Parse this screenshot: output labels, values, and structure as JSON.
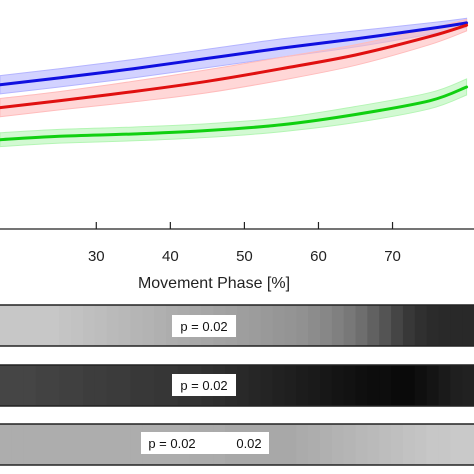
{
  "chart_data": {
    "type": "line",
    "xlabel": "Movement Phase [%]",
    "ylabel": "",
    "title": "",
    "xlim": [
      17,
      81
    ],
    "ylim": [
      0,
      1
    ],
    "grid": false,
    "x_ticks": [
      30,
      40,
      50,
      60,
      70
    ],
    "series": [
      {
        "color": "#1010e0",
        "band_color": "#b4b4ff",
        "x": [
          17,
          25,
          35,
          45,
          55,
          65,
          75,
          80
        ],
        "y": [
          0.63,
          0.66,
          0.7,
          0.745,
          0.79,
          0.83,
          0.875,
          0.9
        ],
        "band": [
          0.04,
          0.04,
          0.04,
          0.04,
          0.04,
          0.035,
          0.025,
          0.02
        ]
      },
      {
        "color": "#e01010",
        "band_color": "#ffbcbc",
        "x": [
          17,
          25,
          35,
          45,
          55,
          65,
          75,
          80
        ],
        "y": [
          0.53,
          0.56,
          0.6,
          0.645,
          0.7,
          0.76,
          0.84,
          0.89
        ],
        "band": [
          0.04,
          0.04,
          0.045,
          0.05,
          0.05,
          0.045,
          0.035,
          0.025
        ]
      },
      {
        "color": "#10d010",
        "band_color": "#b4f5b4",
        "x": [
          17,
          25,
          35,
          45,
          55,
          65,
          75,
          80
        ],
        "y": [
          0.39,
          0.405,
          0.415,
          0.43,
          0.455,
          0.5,
          0.56,
          0.62
        ],
        "band": [
          0.03,
          0.03,
          0.03,
          0.03,
          0.03,
          0.035,
          0.035,
          0.035
        ]
      }
    ],
    "strips": [
      {
        "p_labels": [
          "p = 0.02"
        ],
        "gray_levels": [
          0.78,
          0.78,
          0.78,
          0.78,
          0.78,
          0.77,
          0.76,
          0.75,
          0.74,
          0.73,
          0.72,
          0.71,
          0.7,
          0.69,
          0.68,
          0.67,
          0.66,
          0.65,
          0.64,
          0.63,
          0.62,
          0.61,
          0.6,
          0.59,
          0.58,
          0.57,
          0.55,
          0.53,
          0.5,
          0.47,
          0.43,
          0.38,
          0.33,
          0.27,
          0.22,
          0.19,
          0.17,
          0.16,
          0.16,
          0.16
        ]
      },
      {
        "p_labels": [
          "p = 0.02"
        ],
        "gray_levels": [
          0.27,
          0.27,
          0.27,
          0.26,
          0.26,
          0.25,
          0.25,
          0.24,
          0.24,
          0.23,
          0.23,
          0.22,
          0.22,
          0.21,
          0.21,
          0.2,
          0.2,
          0.19,
          0.18,
          0.17,
          0.16,
          0.15,
          0.14,
          0.13,
          0.12,
          0.11,
          0.1,
          0.09,
          0.08,
          0.07,
          0.06,
          0.05,
          0.05,
          0.04,
          0.04,
          0.06,
          0.08,
          0.1,
          0.12,
          0.13
        ]
      },
      {
        "p_labels": [
          "p = 0.02",
          "0.02"
        ],
        "gray_levels": [
          0.68,
          0.68,
          0.68,
          0.68,
          0.68,
          0.68,
          0.68,
          0.68,
          0.68,
          0.68,
          0.68,
          0.68,
          0.68,
          0.68,
          0.68,
          0.68,
          0.67,
          0.67,
          0.67,
          0.66,
          0.66,
          0.66,
          0.66,
          0.66,
          0.66,
          0.67,
          0.68,
          0.69,
          0.7,
          0.71,
          0.72,
          0.73,
          0.74,
          0.75,
          0.76,
          0.77,
          0.78,
          0.78,
          0.79,
          0.79
        ]
      }
    ]
  }
}
